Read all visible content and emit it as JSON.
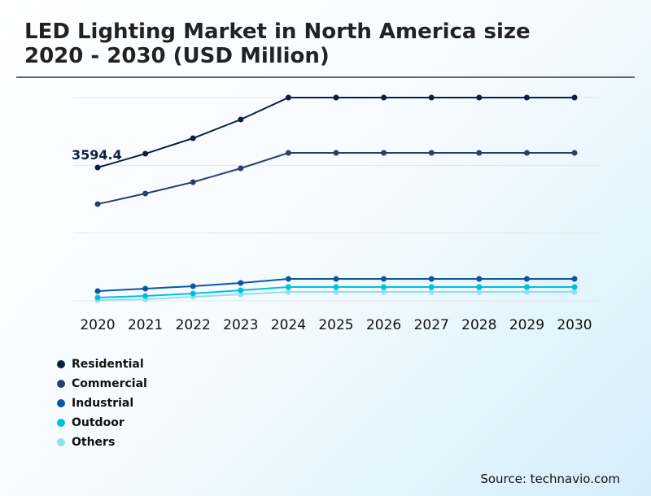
{
  "chart_data": {
    "type": "line",
    "title": "LED Lighting Market in North America size 2020 - 2030 (USD Million)",
    "x": [
      "2020",
      "2021",
      "2022",
      "2023",
      "2024",
      "2025",
      "2026",
      "2027",
      "2028",
      "2029",
      "2030"
    ],
    "ylim": [
      0,
      5480
    ],
    "grid": true,
    "legend": "bottom-left",
    "annotation": "3594.4",
    "series": [
      {
        "name": "Residential",
        "color": "#0b1f44",
        "values": [
          3594.4,
          3967,
          4384,
          4888,
          5480,
          5480,
          5480,
          5480,
          5480,
          5480,
          5480
        ]
      },
      {
        "name": "Commercial",
        "color": "#2c3e70",
        "values": [
          2608,
          2893,
          3200,
          3573,
          3989,
          3989,
          3989,
          3989,
          3989,
          3989,
          3989
        ]
      },
      {
        "name": "Industrial",
        "color": "#0a56a5",
        "values": [
          263,
          329,
          395,
          482,
          592,
          592,
          592,
          592,
          592,
          592,
          592
        ]
      },
      {
        "name": "Outdoor",
        "color": "#00c0e0",
        "values": [
          88,
          132,
          197,
          285,
          373,
          373,
          373,
          373,
          373,
          373,
          373
        ]
      },
      {
        "name": "Others",
        "color": "#8ee0f2",
        "values": [
          22,
          44,
          110,
          175,
          241,
          241,
          241,
          241,
          241,
          241,
          241
        ]
      }
    ]
  },
  "source": "Source: technavio.com"
}
